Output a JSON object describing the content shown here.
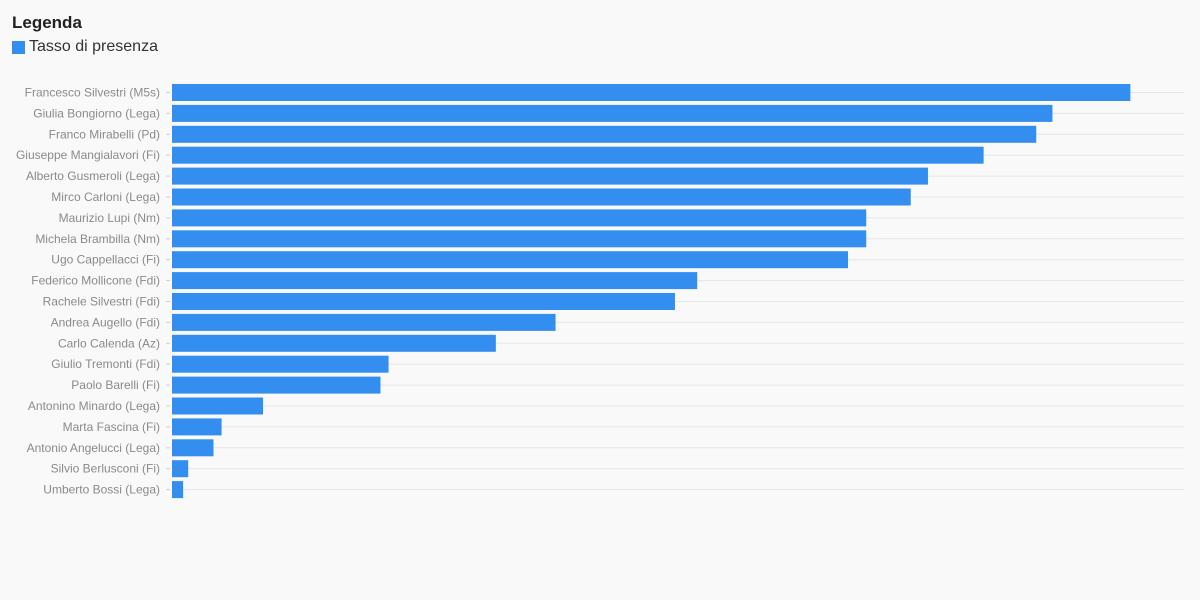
{
  "legend": {
    "title": "Legenda",
    "items": [
      {
        "label": "Tasso di presenza",
        "color": "#338ef0"
      }
    ]
  },
  "chart_data": {
    "type": "bar",
    "orientation": "horizontal",
    "categories": [
      "Francesco Silvestri (M5s)",
      "Giulia Bongiorno (Lega)",
      "Franco Mirabelli (Pd)",
      "Giuseppe Mangialavori (Fi)",
      "Alberto Gusmeroli (Lega)",
      "Mirco Carloni (Lega)",
      "Maurizio Lupi (Nm)",
      "Michela Brambilla (Nm)",
      "Ugo Cappellacci (Fi)",
      "Federico Mollicone (Fdi)",
      "Rachele Silvestri (Fdi)",
      "Andrea Augello (Fdi)",
      "Carlo Calenda (Az)",
      "Giulio Tremonti (Fdi)",
      "Paolo Barelli (Fi)",
      "Antonino Minardo (Lega)",
      "Marta Fascina (Fi)",
      "Antonio Angelucci (Lega)",
      "Silvio Berlusconi (Fi)",
      "Umberto Bossi (Lega)"
    ],
    "series": [
      {
        "name": "Tasso di presenza",
        "color": "#338ef0",
        "values": [
          94.7,
          87.0,
          85.4,
          80.2,
          74.7,
          73.0,
          68.6,
          68.6,
          66.8,
          51.9,
          49.7,
          37.9,
          32.0,
          21.4,
          20.6,
          9.0,
          4.9,
          4.1,
          1.6,
          1.1
        ]
      }
    ],
    "xlim": [
      0,
      100
    ],
    "grid": true,
    "legend_position": "top-left",
    "title": "",
    "xlabel": "",
    "ylabel": ""
  }
}
